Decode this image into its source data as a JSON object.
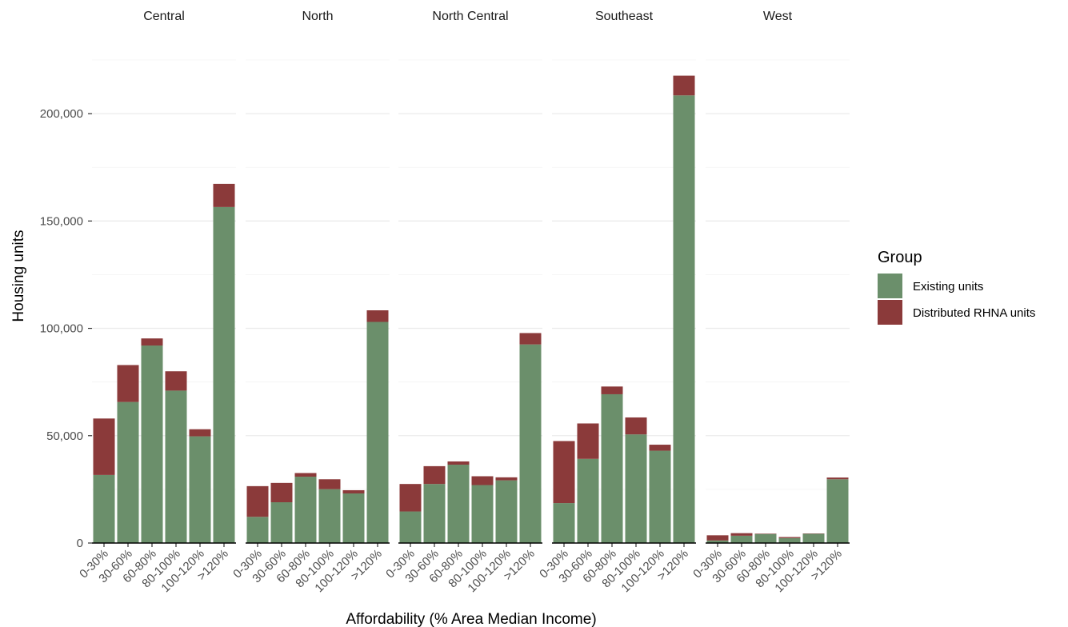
{
  "chart_data": {
    "type": "bar",
    "stacked": true,
    "facet_by": "region",
    "facets": [
      "Central",
      "North",
      "North Central",
      "Southeast",
      "West"
    ],
    "categories": [
      "0-30%",
      "30-60%",
      "60-80%",
      "80-100%",
      "100-120%",
      ">120%"
    ],
    "xlabel": "Affordability (% Area Median Income)",
    "ylabel": "Housing units",
    "ylim": [
      0,
      225000
    ],
    "yticks": [
      0,
      50000,
      100000,
      150000,
      200000
    ],
    "ytick_labels": [
      "0",
      "50,000",
      "100,000",
      "150,000",
      "200,000"
    ],
    "grid": true,
    "legend": {
      "title": "Group",
      "position": "right",
      "entries": [
        "Existing units",
        "Distributed RHNA units"
      ]
    },
    "colors": {
      "Existing units": "#6b8f6b",
      "Distributed RHNA units": "#8b3a3a"
    },
    "series": [
      {
        "name": "Existing units",
        "values": {
          "Central": [
            31700,
            65700,
            92000,
            71000,
            49700,
            156500
          ],
          "North": [
            12200,
            19000,
            30900,
            25100,
            23100,
            103000
          ],
          "North Central": [
            14700,
            27500,
            36500,
            27000,
            29200,
            92500
          ],
          "Southeast": [
            18600,
            39200,
            69300,
            50600,
            43000,
            208500
          ],
          "West": [
            1200,
            3400,
            4200,
            2300,
            4300,
            29700
          ]
        }
      },
      {
        "name": "Distributed RHNA units",
        "values": {
          "Central": [
            26300,
            17200,
            3300,
            9000,
            3300,
            10800
          ],
          "North": [
            14300,
            9000,
            1700,
            4600,
            1500,
            5400
          ],
          "North Central": [
            12800,
            8300,
            1500,
            4100,
            1400,
            5300
          ],
          "Southeast": [
            28900,
            16500,
            3600,
            7900,
            2800,
            9200
          ],
          "West": [
            2400,
            1200,
            200,
            500,
            150,
            800
          ]
        }
      }
    ]
  }
}
